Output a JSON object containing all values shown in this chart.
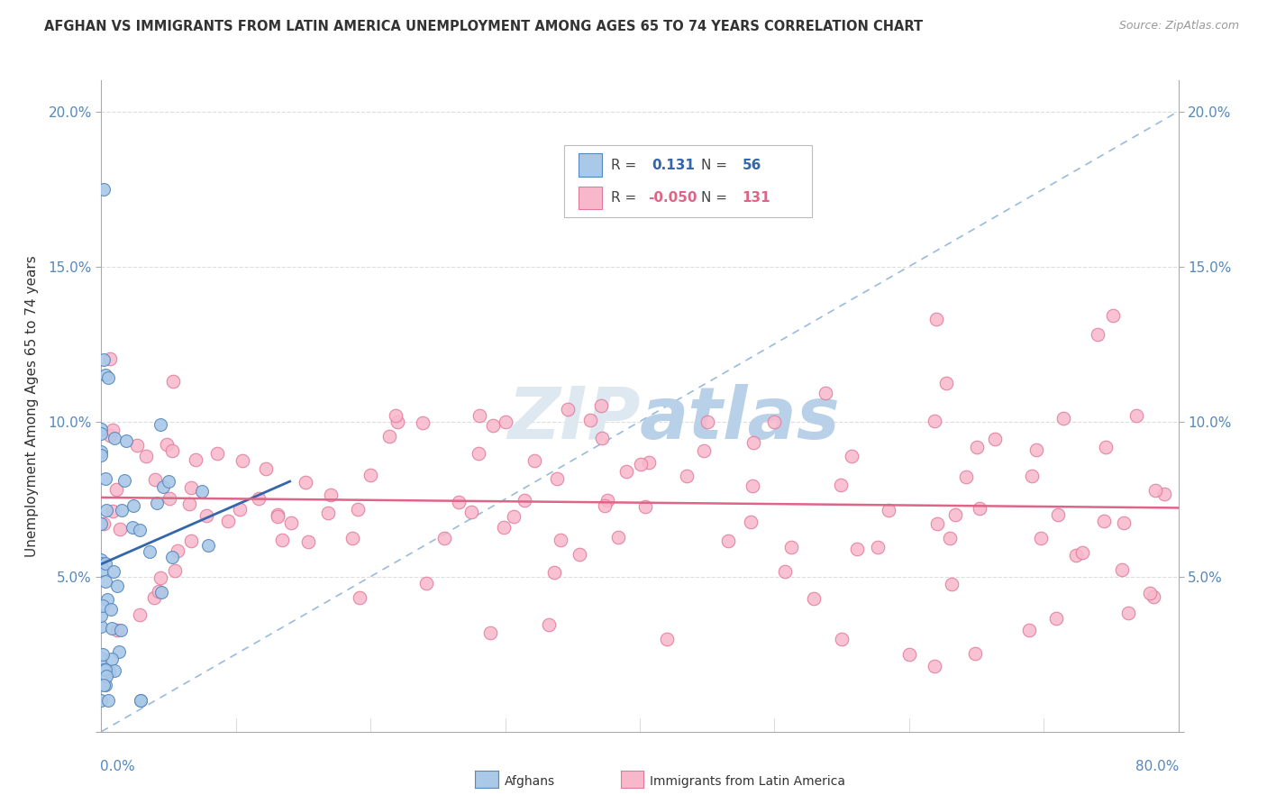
{
  "title": "AFGHAN VS IMMIGRANTS FROM LATIN AMERICA UNEMPLOYMENT AMONG AGES 65 TO 74 YEARS CORRELATION CHART",
  "source": "Source: ZipAtlas.com",
  "ylabel": "Unemployment Among Ages 65 to 74 years",
  "xlim": [
    0,
    0.8
  ],
  "ylim": [
    0,
    0.21
  ],
  "yticks": [
    0,
    0.05,
    0.1,
    0.15,
    0.2
  ],
  "ytick_labels": [
    "",
    "5.0%",
    "10.0%",
    "15.0%",
    "20.0%"
  ],
  "legend_R_afghan": "0.131",
  "legend_N_afghan": "56",
  "legend_R_latin": "-0.050",
  "legend_N_latin": "131",
  "afghan_color": "#aac8e8",
  "afghan_edge_color": "#5588bb",
  "latin_color": "#f8b8cc",
  "latin_edge_color": "#e07898",
  "trend_afghan_color": "#3366aa",
  "trend_latin_color": "#dd6688",
  "trend_dash_color": "#99bbdd",
  "watermark_color": "#ccdde8",
  "background_color": "#ffffff",
  "grid_color": "#dddddd",
  "tick_color": "#5588bb"
}
